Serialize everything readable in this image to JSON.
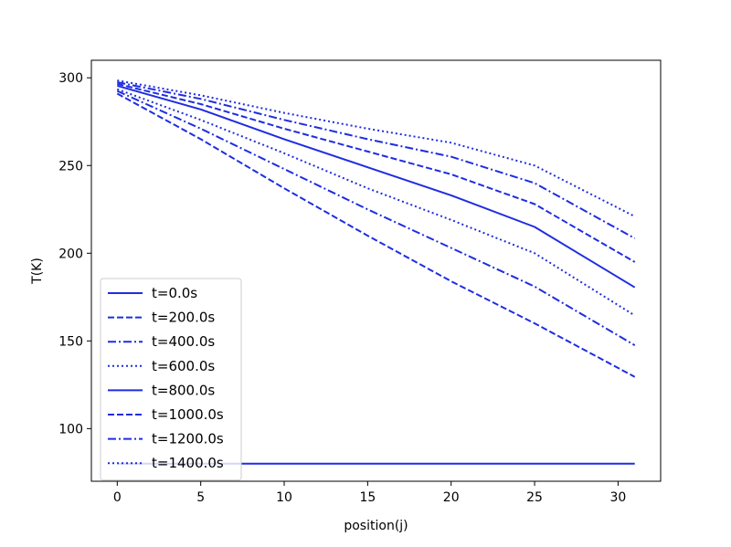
{
  "chart_data": {
    "type": "line",
    "title": "",
    "xlabel": "position(j)",
    "ylabel": "T(K)",
    "xlim": [
      -1.55,
      32.55
    ],
    "ylim": [
      70,
      310
    ],
    "xticks": [
      0,
      5,
      10,
      15,
      20,
      25,
      30
    ],
    "yticks": [
      100,
      150,
      200,
      250,
      300
    ],
    "grid": false,
    "legend_position": "lower-left",
    "color": "#1f2de0",
    "x": [
      0,
      31
    ],
    "series": [
      {
        "name": "t=0.0s",
        "style": "solid",
        "points": [
          [
            0,
            80
          ],
          [
            31,
            80
          ]
        ]
      },
      {
        "name": "t=200.0s",
        "style": "dashed",
        "points": [
          [
            0,
            291
          ],
          [
            5,
            265
          ],
          [
            10,
            237
          ],
          [
            15,
            210
          ],
          [
            20,
            184
          ],
          [
            25,
            160
          ],
          [
            31,
            129.5
          ]
        ]
      },
      {
        "name": "t=400.0s",
        "style": "dashdot",
        "points": [
          [
            0,
            292.5
          ],
          [
            5,
            271
          ],
          [
            10,
            248
          ],
          [
            15,
            225
          ],
          [
            20,
            203
          ],
          [
            25,
            181
          ],
          [
            31,
            147.5
          ]
        ]
      },
      {
        "name": "t=600.0s",
        "style": "dotted",
        "points": [
          [
            0,
            293.5
          ],
          [
            5,
            276
          ],
          [
            10,
            257
          ],
          [
            15,
            237
          ],
          [
            20,
            219
          ],
          [
            25,
            200
          ],
          [
            31,
            164.5
          ]
        ]
      },
      {
        "name": "t=800.0s",
        "style": "solid",
        "points": [
          [
            0,
            295.5
          ],
          [
            5,
            282
          ],
          [
            10,
            265
          ],
          [
            15,
            249
          ],
          [
            20,
            233
          ],
          [
            25,
            215
          ],
          [
            31,
            180.5
          ]
        ]
      },
      {
        "name": "t=1000.0s",
        "style": "dashed",
        "points": [
          [
            0,
            296.5
          ],
          [
            5,
            285
          ],
          [
            10,
            271
          ],
          [
            15,
            258
          ],
          [
            20,
            245
          ],
          [
            25,
            228
          ],
          [
            31,
            195
          ]
        ]
      },
      {
        "name": "t=1200.0s",
        "style": "dashdot",
        "points": [
          [
            0,
            297.5
          ],
          [
            5,
            288
          ],
          [
            10,
            276
          ],
          [
            15,
            265
          ],
          [
            20,
            255
          ],
          [
            25,
            240
          ],
          [
            31,
            208.5
          ]
        ]
      },
      {
        "name": "t=1400.0s",
        "style": "dotted",
        "points": [
          [
            0,
            298.5
          ],
          [
            5,
            290
          ],
          [
            10,
            280
          ],
          [
            15,
            271
          ],
          [
            20,
            263
          ],
          [
            25,
            250
          ],
          [
            31,
            221
          ]
        ]
      }
    ]
  }
}
